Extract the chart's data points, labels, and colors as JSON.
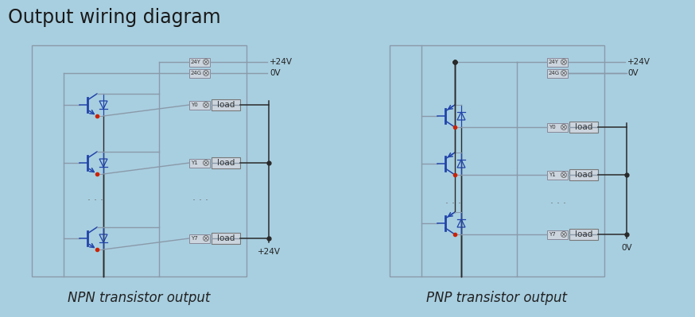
{
  "bg_color": "#a8cfe0",
  "title": "Output wiring diagram",
  "title_fontsize": 17,
  "title_color": "#1a1a1a",
  "wire_color": "#8a9aaa",
  "dark_wire": "#2a2a2a",
  "transistor_color": "#2244aa",
  "red_color": "#cc2200",
  "box_fill": "#ccd5de",
  "box_border": "#888899",
  "text_dark": "#222222",
  "npn_caption": "NPN transistor output",
  "pnp_caption": "PNP transistor output",
  "caption_fontsize": 12
}
